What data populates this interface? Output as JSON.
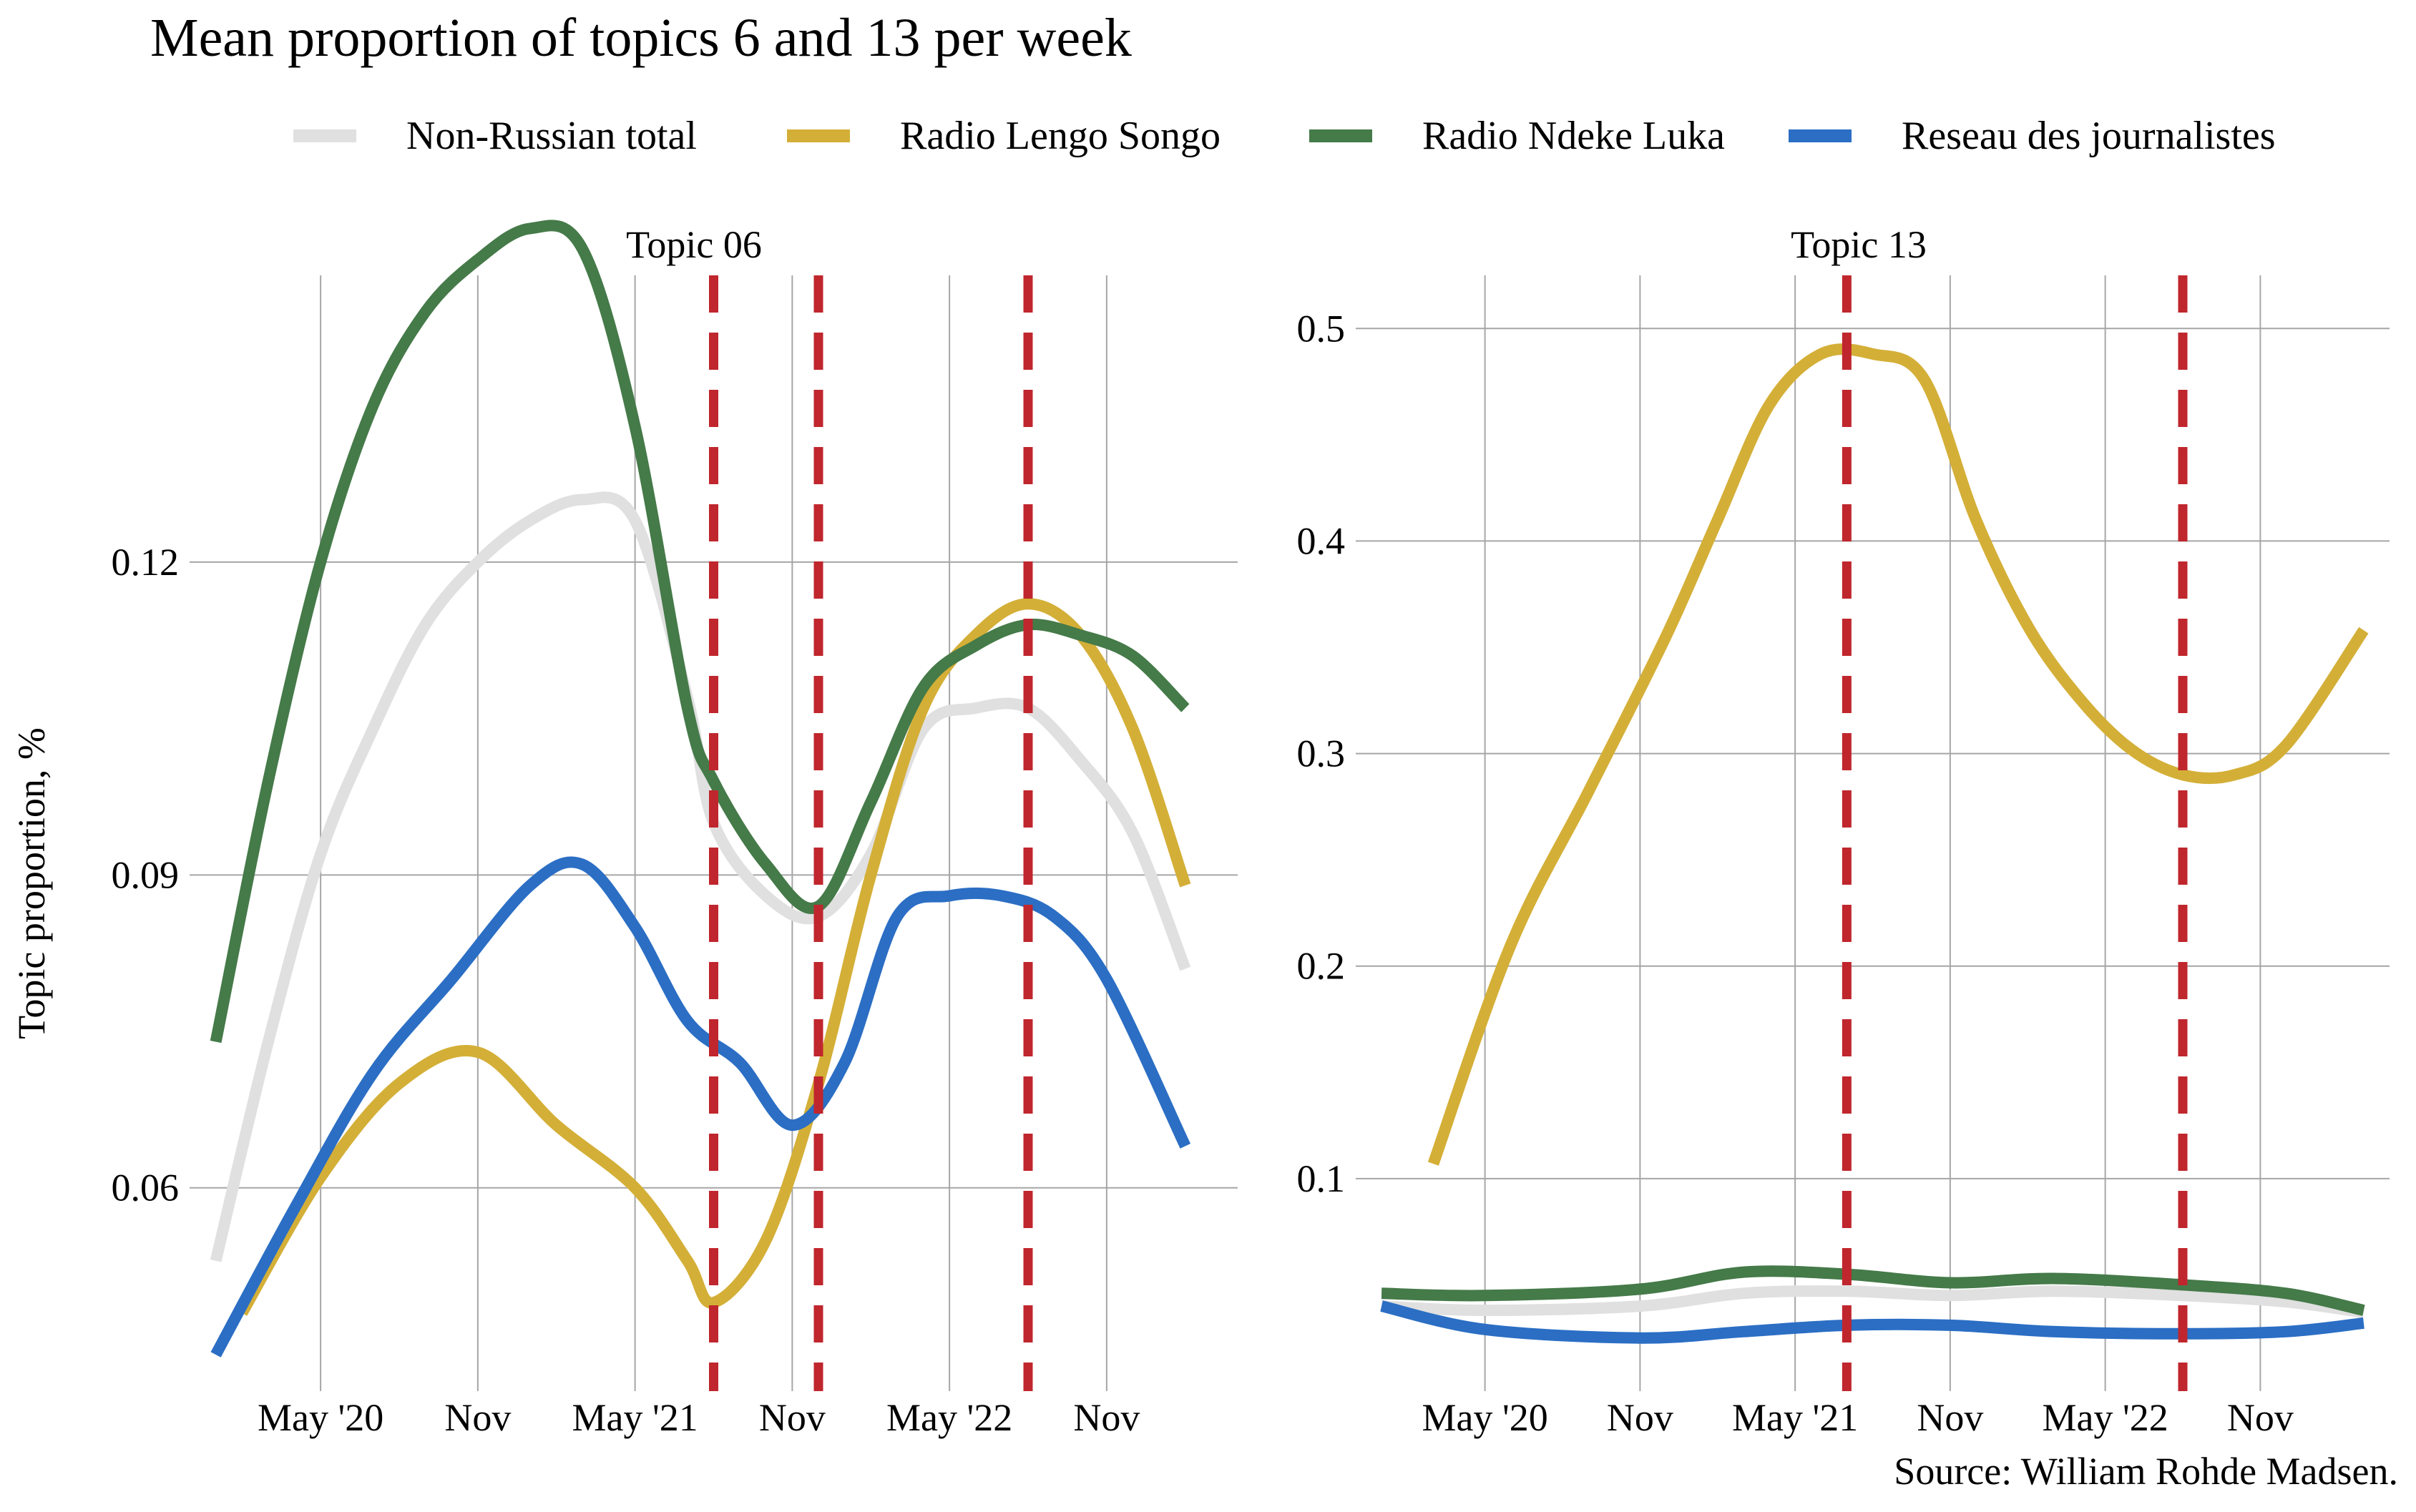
{
  "title": "Mean proportion of topics 6 and 13 per week",
  "caption": "Source: William Rohde Madsen.",
  "ylabel": "Topic proportion, %",
  "legend": [
    {
      "label": "Non-Russian total",
      "color": "#e0e0e0"
    },
    {
      "label": "Radio Lengo Songo",
      "color": "#d4af37"
    },
    {
      "label": "Radio Ndeke Luka",
      "color": "#457a49"
    },
    {
      "label": "Reseau des journalistes",
      "color": "#2b6ec4"
    }
  ],
  "chart_data": [
    {
      "type": "line",
      "strip": "Topic 06",
      "x_ticks": [
        "May '20",
        "Nov",
        "May '21",
        "Nov",
        "May '22",
        "Nov"
      ],
      "x_tick_dates": [
        "2020-05",
        "2020-11",
        "2021-05",
        "2021-11",
        "2022-05",
        "2022-11"
      ],
      "y_ticks": [
        "0.06",
        "0.09",
        "0.12"
      ],
      "ylim": [
        0.0405,
        0.1475
      ],
      "xlim": [
        "2019-12",
        "2023-04"
      ],
      "vlines": [
        "2021-08",
        "2021-12",
        "2022-08"
      ],
      "vline_color": "#c0262d",
      "series": [
        {
          "name": "Non-Russian total",
          "color": "#e0e0e0",
          "points": [
            [
              "2020-01",
              0.053
            ],
            [
              "2020-03",
              0.074
            ],
            [
              "2020-05",
              0.092
            ],
            [
              "2020-07",
              0.104
            ],
            [
              "2020-09",
              0.114
            ],
            [
              "2020-11",
              0.12
            ],
            [
              "2021-01",
              0.124
            ],
            [
              "2021-03",
              0.126
            ],
            [
              "2021-05",
              0.124
            ],
            [
              "2021-07",
              0.107
            ],
            [
              "2021-08",
              0.095
            ],
            [
              "2021-10",
              0.088
            ],
            [
              "2021-12",
              0.086
            ],
            [
              "2022-02",
              0.092
            ],
            [
              "2022-04",
              0.104
            ],
            [
              "2022-06",
              0.106
            ],
            [
              "2022-08",
              0.106
            ],
            [
              "2022-10",
              0.101
            ],
            [
              "2022-12",
              0.094
            ],
            [
              "2023-02",
              0.081
            ]
          ]
        },
        {
          "name": "Radio Lengo Songo",
          "color": "#d4af37",
          "points": [
            [
              "2020-02",
              0.048
            ],
            [
              "2020-05",
              0.061
            ],
            [
              "2020-08",
              0.07
            ],
            [
              "2020-11",
              0.073
            ],
            [
              "2021-02",
              0.066
            ],
            [
              "2021-05",
              0.06
            ],
            [
              "2021-07",
              0.053
            ],
            [
              "2021-08",
              0.049
            ],
            [
              "2021-10",
              0.055
            ],
            [
              "2021-12",
              0.07
            ],
            [
              "2022-02",
              0.09
            ],
            [
              "2022-04",
              0.106
            ],
            [
              "2022-06",
              0.113
            ],
            [
              "2022-08",
              0.116
            ],
            [
              "2022-10",
              0.113
            ],
            [
              "2022-12",
              0.104
            ],
            [
              "2023-02",
              0.089
            ]
          ]
        },
        {
          "name": "Radio Ndeke Luka",
          "color": "#457a49",
          "points": [
            [
              "2020-01",
              0.074
            ],
            [
              "2020-03",
              0.099
            ],
            [
              "2020-05",
              0.12
            ],
            [
              "2020-07",
              0.135
            ],
            [
              "2020-09",
              0.144
            ],
            [
              "2020-11",
              0.149
            ],
            [
              "2021-01",
              0.152
            ],
            [
              "2021-03",
              0.15
            ],
            [
              "2021-05",
              0.133
            ],
            [
              "2021-07",
              0.106
            ],
            [
              "2021-08",
              0.099
            ],
            [
              "2021-10",
              0.091
            ],
            [
              "2021-12",
              0.087
            ],
            [
              "2022-02",
              0.097
            ],
            [
              "2022-04",
              0.108
            ],
            [
              "2022-06",
              0.112
            ],
            [
              "2022-08",
              0.114
            ],
            [
              "2022-10",
              0.113
            ],
            [
              "2022-12",
              0.111
            ],
            [
              "2023-02",
              0.106
            ]
          ]
        },
        {
          "name": "Reseau des journalistes",
          "color": "#2b6ec4",
          "points": [
            [
              "2020-01",
              0.044
            ],
            [
              "2020-04",
              0.058
            ],
            [
              "2020-07",
              0.071
            ],
            [
              "2020-10",
              0.08
            ],
            [
              "2021-01",
              0.089
            ],
            [
              "2021-03",
              0.091
            ],
            [
              "2021-05",
              0.085
            ],
            [
              "2021-07",
              0.076
            ],
            [
              "2021-09",
              0.072
            ],
            [
              "2021-11",
              0.066
            ],
            [
              "2022-01",
              0.072
            ],
            [
              "2022-03",
              0.086
            ],
            [
              "2022-05",
              0.088
            ],
            [
              "2022-07",
              0.088
            ],
            [
              "2022-09",
              0.086
            ],
            [
              "2022-11",
              0.08
            ],
            [
              "2023-02",
              0.064
            ]
          ]
        }
      ]
    },
    {
      "type": "line",
      "strip": "Topic 13",
      "x_ticks": [
        "May '20",
        "Nov",
        "May '21",
        "Nov",
        "May '22",
        "Nov"
      ],
      "x_tick_dates": [
        "2020-05",
        "2020-11",
        "2021-05",
        "2021-11",
        "2022-05",
        "2022-11"
      ],
      "y_ticks": [
        "0.1",
        "0.2",
        "0.3",
        "0.4",
        "0.5"
      ],
      "ylim": [
        0.0,
        0.525
      ],
      "xlim": [
        "2019-12",
        "2023-04"
      ],
      "vlines": [
        "2021-07",
        "2022-08"
      ],
      "vline_color": "#c0262d",
      "series": [
        {
          "name": "Non-Russian total",
          "color": "#e0e0e0",
          "points": [
            [
              "2020-01",
              0.04
            ],
            [
              "2020-05",
              0.038
            ],
            [
              "2020-11",
              0.04
            ],
            [
              "2021-03",
              0.046
            ],
            [
              "2021-07",
              0.047
            ],
            [
              "2021-11",
              0.045
            ],
            [
              "2022-03",
              0.047
            ],
            [
              "2022-08",
              0.045
            ],
            [
              "2022-12",
              0.042
            ],
            [
              "2023-03",
              0.037
            ]
          ]
        },
        {
          "name": "Radio Lengo Songo",
          "color": "#d4af37",
          "points": [
            [
              "2020-03",
              0.107
            ],
            [
              "2020-06",
              0.21
            ],
            [
              "2020-09",
              0.282
            ],
            [
              "2020-12",
              0.355
            ],
            [
              "2021-02",
              0.41
            ],
            [
              "2021-04",
              0.464
            ],
            [
              "2021-06",
              0.488
            ],
            [
              "2021-08",
              0.488
            ],
            [
              "2021-10",
              0.476
            ],
            [
              "2021-12",
              0.41
            ],
            [
              "2022-02",
              0.36
            ],
            [
              "2022-04",
              0.326
            ],
            [
              "2022-06",
              0.302
            ],
            [
              "2022-08",
              0.29
            ],
            [
              "2022-10",
              0.29
            ],
            [
              "2022-12",
              0.304
            ],
            [
              "2023-03",
              0.358
            ]
          ]
        },
        {
          "name": "Radio Ndeke Luka",
          "color": "#457a49",
          "points": [
            [
              "2020-01",
              0.046
            ],
            [
              "2020-05",
              0.045
            ],
            [
              "2020-11",
              0.048
            ],
            [
              "2021-03",
              0.056
            ],
            [
              "2021-07",
              0.055
            ],
            [
              "2021-11",
              0.051
            ],
            [
              "2022-03",
              0.053
            ],
            [
              "2022-08",
              0.05
            ],
            [
              "2022-12",
              0.046
            ],
            [
              "2023-03",
              0.038
            ]
          ]
        },
        {
          "name": "Reseau des journalistes",
          "color": "#2b6ec4",
          "points": [
            [
              "2020-01",
              0.04
            ],
            [
              "2020-05",
              0.029
            ],
            [
              "2020-11",
              0.025
            ],
            [
              "2021-03",
              0.028
            ],
            [
              "2021-07",
              0.031
            ],
            [
              "2021-11",
              0.031
            ],
            [
              "2022-03",
              0.028
            ],
            [
              "2022-08",
              0.027
            ],
            [
              "2022-12",
              0.028
            ],
            [
              "2023-03",
              0.032
            ]
          ]
        }
      ]
    }
  ]
}
